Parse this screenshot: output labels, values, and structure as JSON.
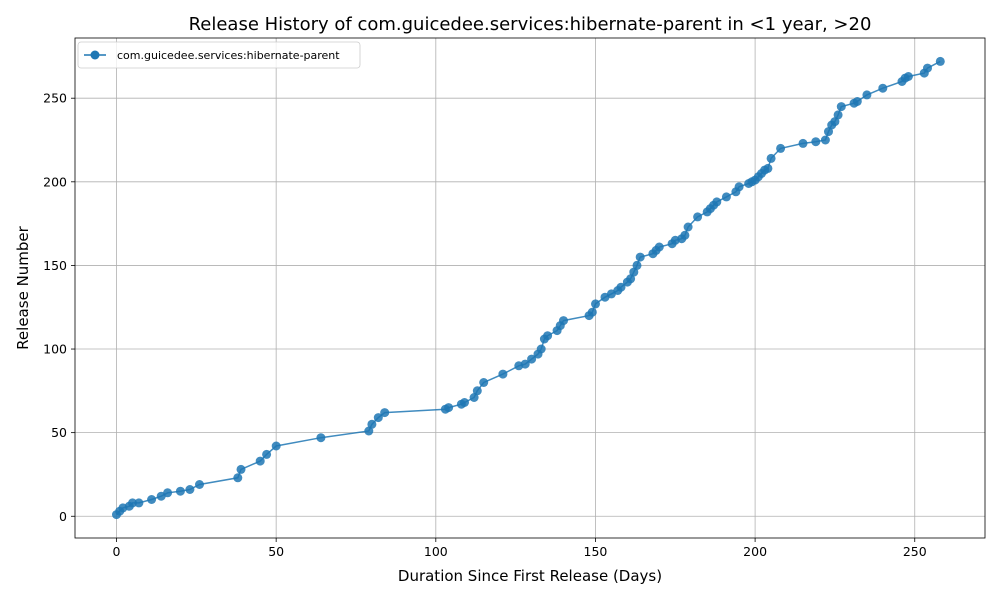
{
  "chart_data": {
    "type": "line",
    "title": "Release History of com.guicedee.services:hibernate-parent in <1 year, >20",
    "xlabel": "Duration Since First Release (Days)",
    "ylabel": "Release Number",
    "xlim": [
      -13,
      272
    ],
    "ylim": [
      -13,
      286
    ],
    "xticks": [
      0,
      50,
      100,
      150,
      200,
      250
    ],
    "yticks": [
      0,
      50,
      100,
      150,
      200,
      250
    ],
    "grid": true,
    "legend_position": "top-left",
    "series": [
      {
        "name": "com.guicedee.services:hibernate-parent",
        "color": "#1f77b4",
        "marker": "circle",
        "x": [
          0,
          1,
          2,
          4,
          5,
          7,
          11,
          14,
          16,
          20,
          23,
          26,
          38,
          39,
          45,
          47,
          50,
          64,
          79,
          80,
          82,
          84,
          103,
          104,
          108,
          109,
          112,
          113,
          115,
          121,
          126,
          128,
          130,
          132,
          133,
          134,
          135,
          138,
          139,
          140,
          148,
          149,
          150,
          153,
          155,
          157,
          158,
          160,
          161,
          162,
          163,
          164,
          168,
          169,
          170,
          174,
          175,
          177,
          178,
          179,
          182,
          185,
          186,
          187,
          188,
          191,
          194,
          195,
          198,
          199,
          200,
          201,
          202,
          203,
          204,
          205,
          208,
          215,
          219,
          222,
          223,
          224,
          225,
          226,
          227,
          231,
          232,
          235,
          240,
          246,
          247,
          248,
          253,
          254,
          258
        ],
        "y": [
          1,
          3,
          5,
          6,
          8,
          8,
          10,
          12,
          14,
          15,
          16,
          19,
          23,
          28,
          33,
          37,
          42,
          47,
          51,
          55,
          59,
          62,
          64,
          65,
          67,
          68,
          71,
          75,
          80,
          85,
          90,
          91,
          94,
          97,
          100,
          106,
          108,
          111,
          114,
          117,
          120,
          122,
          127,
          131,
          133,
          135,
          137,
          140,
          142,
          146,
          150,
          155,
          157,
          159,
          161,
          163,
          165,
          166,
          168,
          173,
          179,
          182,
          184,
          186,
          188,
          191,
          194,
          197,
          199,
          200,
          201,
          203,
          205,
          207,
          208,
          214,
          220,
          223,
          224,
          225,
          230,
          234,
          236,
          240,
          245,
          247,
          248,
          252,
          256,
          260,
          262,
          263,
          265,
          268,
          272
        ]
      }
    ]
  }
}
